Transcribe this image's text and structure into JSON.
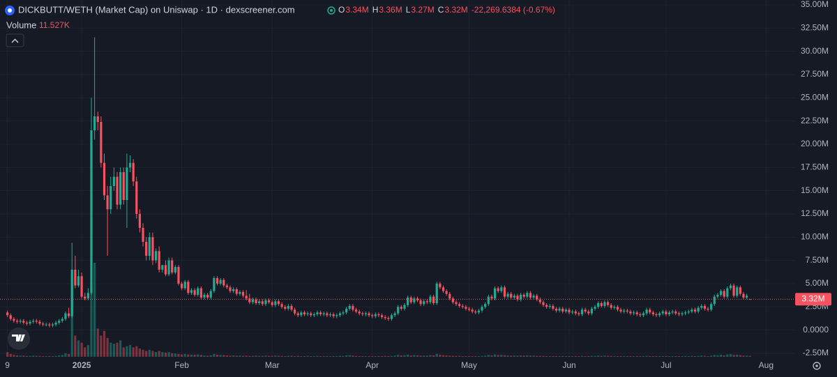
{
  "chart_data": {
    "type": "candlestick",
    "title": "DICKBUTT/WETH (Market Cap) on Uniswap · 1D · dexscreener.com",
    "ohlc": [
      {
        "key": "O",
        "label": "3.34M"
      },
      {
        "key": "H",
        "label": "3.36M"
      },
      {
        "key": "L",
        "label": "3.27M"
      },
      {
        "key": "C",
        "label": "3.32M"
      }
    ],
    "change_label": "-22,269.6384 (-0.67%)",
    "volume_title": "Volume",
    "volume_value_label": "11.527K",
    "up_color": "#22ab94",
    "down_color": "#f7525f",
    "grid": true,
    "ylim": [
      -2.5,
      35
    ],
    "yticks": [
      {
        "value": -2.5,
        "label": "-2.50M"
      },
      {
        "value": 0,
        "label": "0.0000"
      },
      {
        "value": 2.5,
        "label": "2.50M"
      },
      {
        "value": 5,
        "label": "5.00M"
      },
      {
        "value": 7.5,
        "label": "7.50M"
      },
      {
        "value": 10,
        "label": "10.00M"
      },
      {
        "value": 12.5,
        "label": "12.50M"
      },
      {
        "value": 15,
        "label": "15.00M"
      },
      {
        "value": 17.5,
        "label": "17.50M"
      },
      {
        "value": 20,
        "label": "20.00M"
      },
      {
        "value": 22.5,
        "label": "22.50M"
      },
      {
        "value": 25,
        "label": "25.00M"
      },
      {
        "value": 27.5,
        "label": "27.50M"
      },
      {
        "value": 30,
        "label": "30.00M"
      },
      {
        "value": 32.5,
        "label": "32.50M"
      },
      {
        "value": 35,
        "label": "35.00M"
      }
    ],
    "xlim": [
      -2.3,
      244
    ],
    "xticks": [
      {
        "value": 0,
        "label": "9"
      },
      {
        "value": 23,
        "label": "2025"
      },
      {
        "value": 54,
        "label": "Feb"
      },
      {
        "value": 82,
        "label": "Mar"
      },
      {
        "value": 113,
        "label": "Apr"
      },
      {
        "value": 143,
        "label": "May"
      },
      {
        "value": 174,
        "label": "Jun"
      },
      {
        "value": 204,
        "label": "Jul"
      },
      {
        "value": 235,
        "label": "Aug"
      }
    ],
    "last_price": {
      "value": 3.32,
      "label": "3.32M"
    },
    "open": [
      1.9,
      1.6,
      1.2,
      1.0,
      0.9,
      1.0,
      0.8,
      0.7,
      0.9,
      1.0,
      0.9,
      0.7,
      0.6,
      0.6,
      0.5,
      0.6,
      0.8,
      1.0,
      1.2,
      1.8,
      1.5,
      6.5,
      4.8,
      5.8,
      3.6,
      3.4,
      4.0,
      21.5,
      23.0,
      22.4,
      18.0,
      14.5,
      13.0,
      15.5,
      16.5,
      13.5,
      17.0,
      14.0,
      17.5,
      18.0,
      16.0,
      12.5,
      11.0,
      9.5,
      8.0,
      10.0,
      7.5,
      8.5,
      6.5,
      7.0,
      6.0,
      7.5,
      6.2,
      6.8,
      5.0,
      4.5,
      5.2,
      4.0,
      4.3,
      3.8,
      4.5,
      3.5,
      3.8,
      3.5,
      4.2,
      5.6,
      5.0,
      5.4,
      4.8,
      4.6,
      4.2,
      4.4,
      3.9,
      4.1,
      3.7,
      3.4,
      3.0,
      3.3,
      2.9,
      3.1,
      2.8,
      3.2,
      3.0,
      2.7,
      3.1,
      2.8,
      2.5,
      2.3,
      2.6,
      2.2,
      1.8,
      1.6,
      1.9,
      1.7,
      1.8,
      1.6,
      1.7,
      1.9,
      1.7,
      1.8,
      1.6,
      1.7,
      1.5,
      1.6,
      1.8,
      1.9,
      2.3,
      2.6,
      2.2,
      2.0,
      1.8,
      1.7,
      1.8,
      1.6,
      1.5,
      1.7,
      1.6,
      1.4,
      1.3,
      1.2,
      1.6,
      1.8,
      2.5,
      2.3,
      2.7,
      3.5,
      3.0,
      3.4,
      3.2,
      2.8,
      3.1,
      3.0,
      3.6,
      2.9,
      5.0,
      4.6,
      4.2,
      3.9,
      3.4,
      3.0,
      2.8,
      2.6,
      2.5,
      2.3,
      2.2,
      2.0,
      1.9,
      2.1,
      2.5,
      2.8,
      3.6,
      3.4,
      4.5,
      4.2,
      4.6,
      3.6,
      3.9,
      3.5,
      3.7,
      3.3,
      3.8,
      3.6,
      4.0,
      3.5,
      3.7,
      3.3,
      3.0,
      2.7,
      2.5,
      2.6,
      2.3,
      2.1,
      2.3,
      2.0,
      2.2,
      1.9,
      2.0,
      1.8,
      1.7,
      2.2,
      2.0,
      1.8,
      2.3,
      2.5,
      2.9,
      2.6,
      3.0,
      2.7,
      2.4,
      2.5,
      2.2,
      2.0,
      2.1,
      2.0,
      1.8,
      1.9,
      1.7,
      1.6,
      1.8,
      2.2,
      1.9,
      1.7,
      1.6,
      1.8,
      2.0,
      1.7,
      1.9,
      2.0,
      1.8,
      1.7,
      1.8,
      1.9,
      2.0,
      2.2,
      2.0,
      2.4,
      2.6,
      2.3,
      2.2,
      2.8,
      3.6,
      3.8,
      4.2,
      3.6,
      4.5,
      4.8,
      3.7,
      4.6,
      3.9,
      3.5,
      3.34
    ],
    "high": [
      2.1,
      1.8,
      1.4,
      1.2,
      1.2,
      1.2,
      1.0,
      1.1,
      1.2,
      1.2,
      1.1,
      0.9,
      0.8,
      0.8,
      0.8,
      1.0,
      1.2,
      1.4,
      2.0,
      2.4,
      9.4,
      8.0,
      6.5,
      6.2,
      4.0,
      4.5,
      25.0,
      31.5,
      23.5,
      23.0,
      19.0,
      15.5,
      16.5,
      17.5,
      17.0,
      17.5,
      17.5,
      19.0,
      18.8,
      18.4,
      16.5,
      13.0,
      11.5,
      10.0,
      10.5,
      10.5,
      8.8,
      9.0,
      7.0,
      7.5,
      7.8,
      7.8,
      7.0,
      7.0,
      5.2,
      5.4,
      5.4,
      4.5,
      4.5,
      4.7,
      4.7,
      4.0,
      4.0,
      4.4,
      5.8,
      5.8,
      5.6,
      5.6,
      5.0,
      4.8,
      4.6,
      4.6,
      4.3,
      4.3,
      4.3,
      3.9,
      3.5,
      3.5,
      3.3,
      3.3,
      3.4,
      3.4,
      3.2,
      3.3,
      3.3,
      3.0,
      2.7,
      2.8,
      2.8,
      2.4,
      2.0,
      2.1,
      2.1,
      2.0,
      2.0,
      1.9,
      2.1,
      2.1,
      2.0,
      2.0,
      1.9,
      1.9,
      1.8,
      2.0,
      2.1,
      2.5,
      2.8,
      2.8,
      2.4,
      2.2,
      2.0,
      2.0,
      2.0,
      1.8,
      1.9,
      1.9,
      1.8,
      1.6,
      1.5,
      1.8,
      2.0,
      2.7,
      2.7,
      2.9,
      3.7,
      3.7,
      3.6,
      3.6,
      3.4,
      3.3,
      3.3,
      3.8,
      3.8,
      5.2,
      5.2,
      4.8,
      4.4,
      4.1,
      3.6,
      3.2,
      3.0,
      2.8,
      2.7,
      2.5,
      2.4,
      2.2,
      2.3,
      2.7,
      3.0,
      3.8,
      3.8,
      4.7,
      4.7,
      4.8,
      4.8,
      4.1,
      4.1,
      3.9,
      3.9,
      4.0,
      4.0,
      4.2,
      4.2,
      3.9,
      3.9,
      3.5,
      3.2,
      2.9,
      2.8,
      2.8,
      2.5,
      2.5,
      2.5,
      2.4,
      2.4,
      2.2,
      2.2,
      2.0,
      2.4,
      2.4,
      2.2,
      2.5,
      2.7,
      3.1,
      3.1,
      3.2,
      3.2,
      2.9,
      2.7,
      2.7,
      2.4,
      2.3,
      2.3,
      2.2,
      2.1,
      2.1,
      1.9,
      2.0,
      2.4,
      2.4,
      2.1,
      1.9,
      2.0,
      2.2,
      2.2,
      2.1,
      2.2,
      2.2,
      2.0,
      2.0,
      2.1,
      2.2,
      2.4,
      2.4,
      2.6,
      2.8,
      2.8,
      2.5,
      3.0,
      3.8,
      4.0,
      4.4,
      4.4,
      4.7,
      5.0,
      5.0,
      4.8,
      4.8,
      4.1,
      3.9,
      3.36
    ],
    "low": [
      1.4,
      1.0,
      0.8,
      0.7,
      0.7,
      0.6,
      0.5,
      0.5,
      0.7,
      0.7,
      0.5,
      0.4,
      0.4,
      0.3,
      0.3,
      0.4,
      0.6,
      0.8,
      1.0,
      1.3,
      1.3,
      4.5,
      4.6,
      3.4,
      3.2,
      3.2,
      3.8,
      20.5,
      21.5,
      17.5,
      14.0,
      8.0,
      12.5,
      15.0,
      13.0,
      13.0,
      13.5,
      11.0,
      17.0,
      15.5,
      12.0,
      10.5,
      9.0,
      7.5,
      7.5,
      7.0,
      7.2,
      6.2,
      6.2,
      5.8,
      5.8,
      6.0,
      6.0,
      4.8,
      4.3,
      4.3,
      3.8,
      3.8,
      3.6,
      3.6,
      3.3,
      3.3,
      3.3,
      3.3,
      4.0,
      4.8,
      4.8,
      4.6,
      4.4,
      4.0,
      4.0,
      3.7,
      3.7,
      3.5,
      3.2,
      2.8,
      2.8,
      2.7,
      2.7,
      2.6,
      2.6,
      2.8,
      2.5,
      2.5,
      2.6,
      2.3,
      2.1,
      2.1,
      2.0,
      1.6,
      1.4,
      1.4,
      1.5,
      1.5,
      1.4,
      1.4,
      1.5,
      1.5,
      1.5,
      1.4,
      1.4,
      1.3,
      1.3,
      1.4,
      1.6,
      1.7,
      2.1,
      2.0,
      1.8,
      1.6,
      1.5,
      1.5,
      1.4,
      1.3,
      1.3,
      1.4,
      1.2,
      1.1,
      1.0,
      1.0,
      1.4,
      1.6,
      2.1,
      2.1,
      2.5,
      2.8,
      2.8,
      3.0,
      2.6,
      2.6,
      2.8,
      2.8,
      2.7,
      2.7,
      4.4,
      4.0,
      3.7,
      3.2,
      2.8,
      2.6,
      2.4,
      2.3,
      2.1,
      2.0,
      1.8,
      1.7,
      1.7,
      1.9,
      2.3,
      2.6,
      3.2,
      3.2,
      4.0,
      4.0,
      3.4,
      3.4,
      3.3,
      3.3,
      3.1,
      3.1,
      3.4,
      3.4,
      3.3,
      3.3,
      3.1,
      2.8,
      2.5,
      2.3,
      2.3,
      2.1,
      1.9,
      1.9,
      1.8,
      1.8,
      1.7,
      1.7,
      1.6,
      1.5,
      1.5,
      1.8,
      1.6,
      1.6,
      2.1,
      2.3,
      2.4,
      2.4,
      2.5,
      2.2,
      2.2,
      2.0,
      1.8,
      1.8,
      1.8,
      1.6,
      1.6,
      1.5,
      1.4,
      1.4,
      1.6,
      1.7,
      1.5,
      1.4,
      1.4,
      1.6,
      1.5,
      1.5,
      1.7,
      1.6,
      1.5,
      1.5,
      1.6,
      1.7,
      1.8,
      1.8,
      1.8,
      2.2,
      2.1,
      2.0,
      2.0,
      2.6,
      3.4,
      3.6,
      3.4,
      3.4,
      4.3,
      3.5,
      3.5,
      3.7,
      3.3,
      3.3,
      3.27
    ],
    "close": [
      1.6,
      1.2,
      1.0,
      0.9,
      1.0,
      0.8,
      0.7,
      0.9,
      1.0,
      0.9,
      0.7,
      0.6,
      0.6,
      0.5,
      0.6,
      0.8,
      1.0,
      1.2,
      1.8,
      1.5,
      6.5,
      4.8,
      5.8,
      3.6,
      3.4,
      4.0,
      21.5,
      23.0,
      22.4,
      18.0,
      14.5,
      13.0,
      15.5,
      16.5,
      13.5,
      17.0,
      14.0,
      17.5,
      18.0,
      16.0,
      12.5,
      11.0,
      9.5,
      8.0,
      10.0,
      7.5,
      8.5,
      6.5,
      7.0,
      6.0,
      7.5,
      6.2,
      6.8,
      5.0,
      4.5,
      5.2,
      4.0,
      4.3,
      3.8,
      4.5,
      3.5,
      3.8,
      3.5,
      4.2,
      5.6,
      5.0,
      5.4,
      4.8,
      4.6,
      4.2,
      4.4,
      3.9,
      4.1,
      3.7,
      3.4,
      3.0,
      3.3,
      2.9,
      3.1,
      2.8,
      3.2,
      3.0,
      2.7,
      3.1,
      2.8,
      2.5,
      2.3,
      2.6,
      2.2,
      1.8,
      1.6,
      1.9,
      1.7,
      1.8,
      1.6,
      1.7,
      1.9,
      1.7,
      1.8,
      1.6,
      1.7,
      1.5,
      1.6,
      1.8,
      1.9,
      2.3,
      2.6,
      2.2,
      2.0,
      1.8,
      1.7,
      1.8,
      1.6,
      1.5,
      1.7,
      1.6,
      1.4,
      1.3,
      1.2,
      1.6,
      1.8,
      2.5,
      2.3,
      2.7,
      3.5,
      3.0,
      3.4,
      3.2,
      2.8,
      3.1,
      3.0,
      3.6,
      2.9,
      5.0,
      4.6,
      4.2,
      3.9,
      3.4,
      3.0,
      2.8,
      2.6,
      2.5,
      2.3,
      2.2,
      2.0,
      1.9,
      2.1,
      2.5,
      2.8,
      3.6,
      3.4,
      4.5,
      4.2,
      4.6,
      3.6,
      3.9,
      3.5,
      3.7,
      3.3,
      3.8,
      3.6,
      4.0,
      3.5,
      3.7,
      3.3,
      3.0,
      2.7,
      2.5,
      2.6,
      2.3,
      2.1,
      2.3,
      2.0,
      2.2,
      1.9,
      2.0,
      1.8,
      1.7,
      2.2,
      2.0,
      1.8,
      2.3,
      2.5,
      2.9,
      2.6,
      3.0,
      2.7,
      2.4,
      2.5,
      2.2,
      2.0,
      2.1,
      2.0,
      1.8,
      1.9,
      1.7,
      1.6,
      1.8,
      2.2,
      1.9,
      1.7,
      1.6,
      1.8,
      2.0,
      1.7,
      1.9,
      2.0,
      1.8,
      1.7,
      1.8,
      1.9,
      2.0,
      2.2,
      2.0,
      2.4,
      2.6,
      2.3,
      2.2,
      2.8,
      3.6,
      3.8,
      4.2,
      3.6,
      4.5,
      4.8,
      3.7,
      4.6,
      3.9,
      3.5,
      3.7,
      3.32
    ],
    "volume": [
      20,
      12,
      8,
      6,
      5,
      5,
      4,
      4,
      5,
      4,
      4,
      3,
      3,
      3,
      3,
      4,
      6,
      8,
      15,
      12,
      350,
      90,
      70,
      60,
      40,
      50,
      300,
      400,
      120,
      90,
      110,
      80,
      60,
      55,
      60,
      70,
      40,
      45,
      50,
      40,
      45,
      35,
      30,
      25,
      30,
      25,
      20,
      25,
      20,
      18,
      20,
      15,
      14,
      12,
      10,
      12,
      10,
      9,
      9,
      10,
      8,
      6,
      5,
      6,
      12,
      9,
      8,
      7,
      6,
      5,
      6,
      5,
      5,
      4,
      5,
      4,
      4,
      5,
      4,
      4,
      5,
      4,
      4,
      5,
      4,
      4,
      3,
      4,
      4,
      3,
      4,
      3,
      3,
      4,
      3,
      3,
      4,
      3,
      3,
      3,
      3,
      3,
      3,
      4,
      4,
      6,
      7,
      5,
      4,
      3,
      3,
      3,
      3,
      3,
      3,
      3,
      3,
      4,
      3,
      4,
      5,
      8,
      6,
      7,
      9,
      6,
      7,
      6,
      5,
      5,
      5,
      7,
      6,
      12,
      9,
      7,
      6,
      5,
      4,
      4,
      4,
      3,
      3,
      3,
      3,
      3,
      3,
      4,
      5,
      8,
      6,
      10,
      8,
      8,
      7,
      6,
      5,
      5,
      5,
      6,
      5,
      6,
      5,
      5,
      4,
      4,
      4,
      3,
      3,
      3,
      3,
      3,
      3,
      3,
      3,
      3,
      3,
      3,
      4,
      3,
      3,
      4,
      4,
      5,
      4,
      5,
      4,
      4,
      3,
      3,
      3,
      3,
      3,
      3,
      3,
      3,
      3,
      3,
      4,
      3,
      3,
      3,
      3,
      3,
      3,
      3,
      3,
      3,
      3,
      3,
      3,
      3,
      4,
      3,
      4,
      5,
      4,
      3,
      5,
      8,
      7,
      9,
      6,
      10,
      11,
      8,
      9,
      7,
      5,
      5,
      4
    ]
  }
}
